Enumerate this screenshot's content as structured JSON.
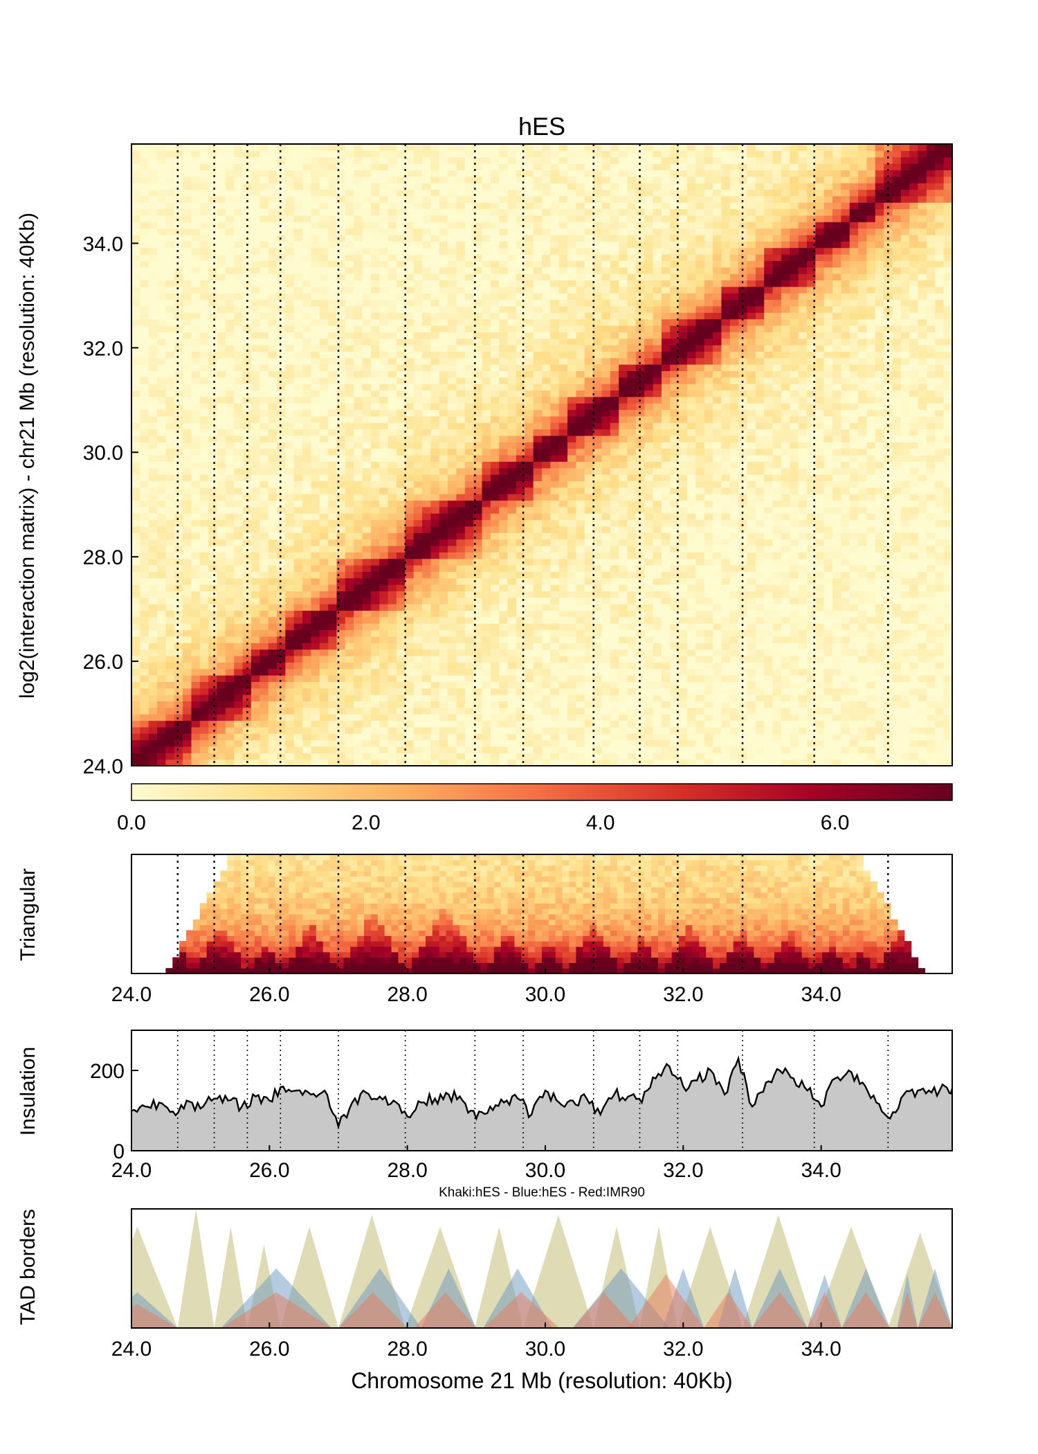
{
  "chart_data": [
    {
      "type": "heatmap",
      "title": "hES",
      "ylabel": "log2(interaction matrix) - chr21 Mb (resolution: 40Kb)",
      "xlim": [
        24.0,
        35.9
      ],
      "ylim": [
        24.0,
        35.9
      ],
      "yticks": [
        "24.0",
        "26.0",
        "28.0",
        "30.0",
        "32.0",
        "34.0"
      ],
      "colorbar": {
        "range": [
          0.0,
          7.0
        ],
        "ticks": [
          "0.0",
          "2.0",
          "4.0",
          "6.0"
        ],
        "colors": [
          "#fffbd0",
          "#fee08b",
          "#fdae61",
          "#f46d43",
          "#d73027",
          "#a50026",
          "#67001f"
        ]
      },
      "tad_blocks": [
        [
          24.0,
          24.9
        ],
        [
          24.9,
          25.7
        ],
        [
          25.7,
          26.2
        ],
        [
          26.2,
          27.0
        ],
        [
          27.0,
          28.0
        ],
        [
          28.0,
          29.1
        ],
        [
          29.1,
          29.8
        ],
        [
          29.8,
          30.3
        ],
        [
          30.3,
          31.1
        ],
        [
          31.1,
          31.7
        ],
        [
          31.7,
          32.5
        ],
        [
          32.5,
          33.2
        ],
        [
          33.2,
          33.9
        ],
        [
          33.9,
          34.4
        ],
        [
          34.4,
          34.8
        ],
        [
          34.8,
          35.9
        ]
      ],
      "border_positions_mb": [
        24.67,
        25.2,
        25.68,
        26.16,
        27.0,
        27.97,
        28.98,
        29.68,
        30.7,
        31.37,
        31.92,
        32.86,
        33.9,
        34.97
      ]
    },
    {
      "type": "heatmap",
      "ylabel": "Triangular",
      "xticks": [
        "24.0",
        "26.0",
        "28.0",
        "30.0",
        "32.0",
        "34.0"
      ],
      "xlim": [
        24.0,
        35.9
      ]
    },
    {
      "type": "area",
      "ylabel": "Insulation",
      "xticks": [
        "24.0",
        "26.0",
        "28.0",
        "30.0",
        "32.0",
        "34.0"
      ],
      "yticks": [
        "0",
        "200"
      ],
      "xlim": [
        24.0,
        35.9
      ],
      "ylim": [
        0,
        300
      ],
      "x": [
        24.0,
        24.2,
        24.4,
        24.6,
        24.8,
        25.0,
        25.2,
        25.4,
        25.6,
        25.8,
        26.0,
        26.2,
        26.4,
        26.6,
        26.8,
        27.0,
        27.2,
        27.4,
        27.6,
        27.8,
        28.0,
        28.2,
        28.4,
        28.6,
        28.8,
        29.0,
        29.2,
        29.4,
        29.6,
        29.8,
        30.0,
        30.2,
        30.4,
        30.6,
        30.8,
        31.0,
        31.2,
        31.4,
        31.6,
        31.8,
        32.0,
        32.2,
        32.4,
        32.6,
        32.8,
        33.0,
        33.2,
        33.4,
        33.6,
        33.8,
        34.0,
        34.2,
        34.4,
        34.6,
        34.8,
        35.0,
        35.2,
        35.4,
        35.6,
        35.8,
        35.9
      ],
      "values": [
        100,
        110,
        120,
        98,
        125,
        105,
        130,
        125,
        110,
        135,
        125,
        160,
        150,
        140,
        150,
        60,
        120,
        145,
        135,
        125,
        85,
        120,
        130,
        140,
        125,
        80,
        110,
        120,
        130,
        90,
        150,
        120,
        125,
        130,
        90,
        140,
        135,
        120,
        180,
        210,
        160,
        175,
        200,
        140,
        230,
        110,
        170,
        200,
        180,
        150,
        110,
        180,
        200,
        170,
        120,
        80,
        140,
        150,
        145,
        160,
        155
      ],
      "border_positions_mb": [
        24.67,
        25.2,
        25.68,
        26.16,
        27.0,
        27.97,
        28.98,
        29.68,
        30.7,
        31.37,
        31.92,
        32.86,
        33.9,
        34.97
      ]
    },
    {
      "type": "area",
      "ylabel": "TAD borders",
      "xlabel": "Chromosome 21 Mb (resolution: 40Kb)",
      "legend_text": "Khaki:hES - Blue:hES - Red:IMR90",
      "xticks": [
        "24.0",
        "26.0",
        "28.0",
        "30.0",
        "32.0",
        "34.0"
      ],
      "xlim": [
        24.0,
        35.9
      ],
      "ylim": [
        0,
        1
      ],
      "series": [
        {
          "name": "Khaki:hES",
          "color": "#bdb76b",
          "tads": [
            [
              23.5,
              24.67,
              0.85
            ],
            [
              24.67,
              25.2,
              1.0
            ],
            [
              25.2,
              25.68,
              0.85
            ],
            [
              25.68,
              26.16,
              0.7
            ],
            [
              26.16,
              27.0,
              0.85
            ],
            [
              27.0,
              27.97,
              0.95
            ],
            [
              27.97,
              28.98,
              0.85
            ],
            [
              28.98,
              29.68,
              0.85
            ],
            [
              29.68,
              30.7,
              0.95
            ],
            [
              30.7,
              31.37,
              0.85
            ],
            [
              31.37,
              31.92,
              0.85
            ],
            [
              31.92,
              32.86,
              0.85
            ],
            [
              32.86,
              33.9,
              0.95
            ],
            [
              33.9,
              34.97,
              0.85
            ],
            [
              34.97,
              35.9,
              0.8
            ]
          ]
        },
        {
          "name": "Blue:hES",
          "color": "#6b97c2",
          "tads": [
            [
              23.5,
              24.67,
              0.3
            ],
            [
              25.3,
              26.9,
              0.5
            ],
            [
              27.0,
              28.2,
              0.5
            ],
            [
              28.2,
              29.0,
              0.5
            ],
            [
              29.1,
              30.1,
              0.5
            ],
            [
              30.4,
              31.8,
              0.5
            ],
            [
              31.7,
              32.3,
              0.5
            ],
            [
              32.5,
              33.0,
              0.5
            ],
            [
              33.0,
              33.8,
              0.5
            ],
            [
              33.8,
              34.3,
              0.45
            ],
            [
              34.3,
              35.0,
              0.5
            ],
            [
              35.1,
              35.4,
              0.45
            ],
            [
              35.4,
              35.9,
              0.5
            ]
          ]
        },
        {
          "name": "Red:IMR90",
          "color": "#e87a5a",
          "tads": [
            [
              23.5,
              24.67,
              0.2
            ],
            [
              25.3,
              26.9,
              0.3
            ],
            [
              27.0,
              28.0,
              0.3
            ],
            [
              28.1,
              29.0,
              0.3
            ],
            [
              29.1,
              30.2,
              0.3
            ],
            [
              30.4,
              31.3,
              0.3
            ],
            [
              31.2,
              32.3,
              0.45
            ],
            [
              32.3,
              33.0,
              0.3
            ],
            [
              33.0,
              33.8,
              0.3
            ],
            [
              33.8,
              34.3,
              0.3
            ],
            [
              34.3,
              35.0,
              0.3
            ],
            [
              35.1,
              35.4,
              0.3
            ],
            [
              35.4,
              35.9,
              0.3
            ]
          ]
        }
      ]
    }
  ]
}
